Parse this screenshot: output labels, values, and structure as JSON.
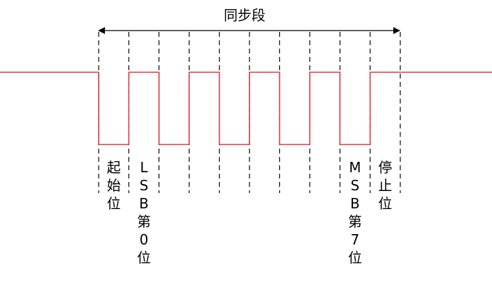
{
  "title": "同步段",
  "colors": {
    "signal": "#e0393e",
    "guide": "#000000",
    "text": "#000000"
  },
  "waveform": {
    "bit_levels": [
      0,
      1,
      0,
      1,
      0,
      1,
      0,
      1,
      0
    ],
    "idle_level": 1,
    "stop_level": 1
  },
  "labels": {
    "start_bit": [
      "起",
      "始",
      "位"
    ],
    "lsb": [
      "L",
      "S",
      "B",
      "第",
      "0",
      "位"
    ],
    "msb": [
      "M",
      "S",
      "B",
      "第",
      "7",
      "位"
    ],
    "stop_bit": [
      "停",
      "止",
      "位"
    ]
  }
}
